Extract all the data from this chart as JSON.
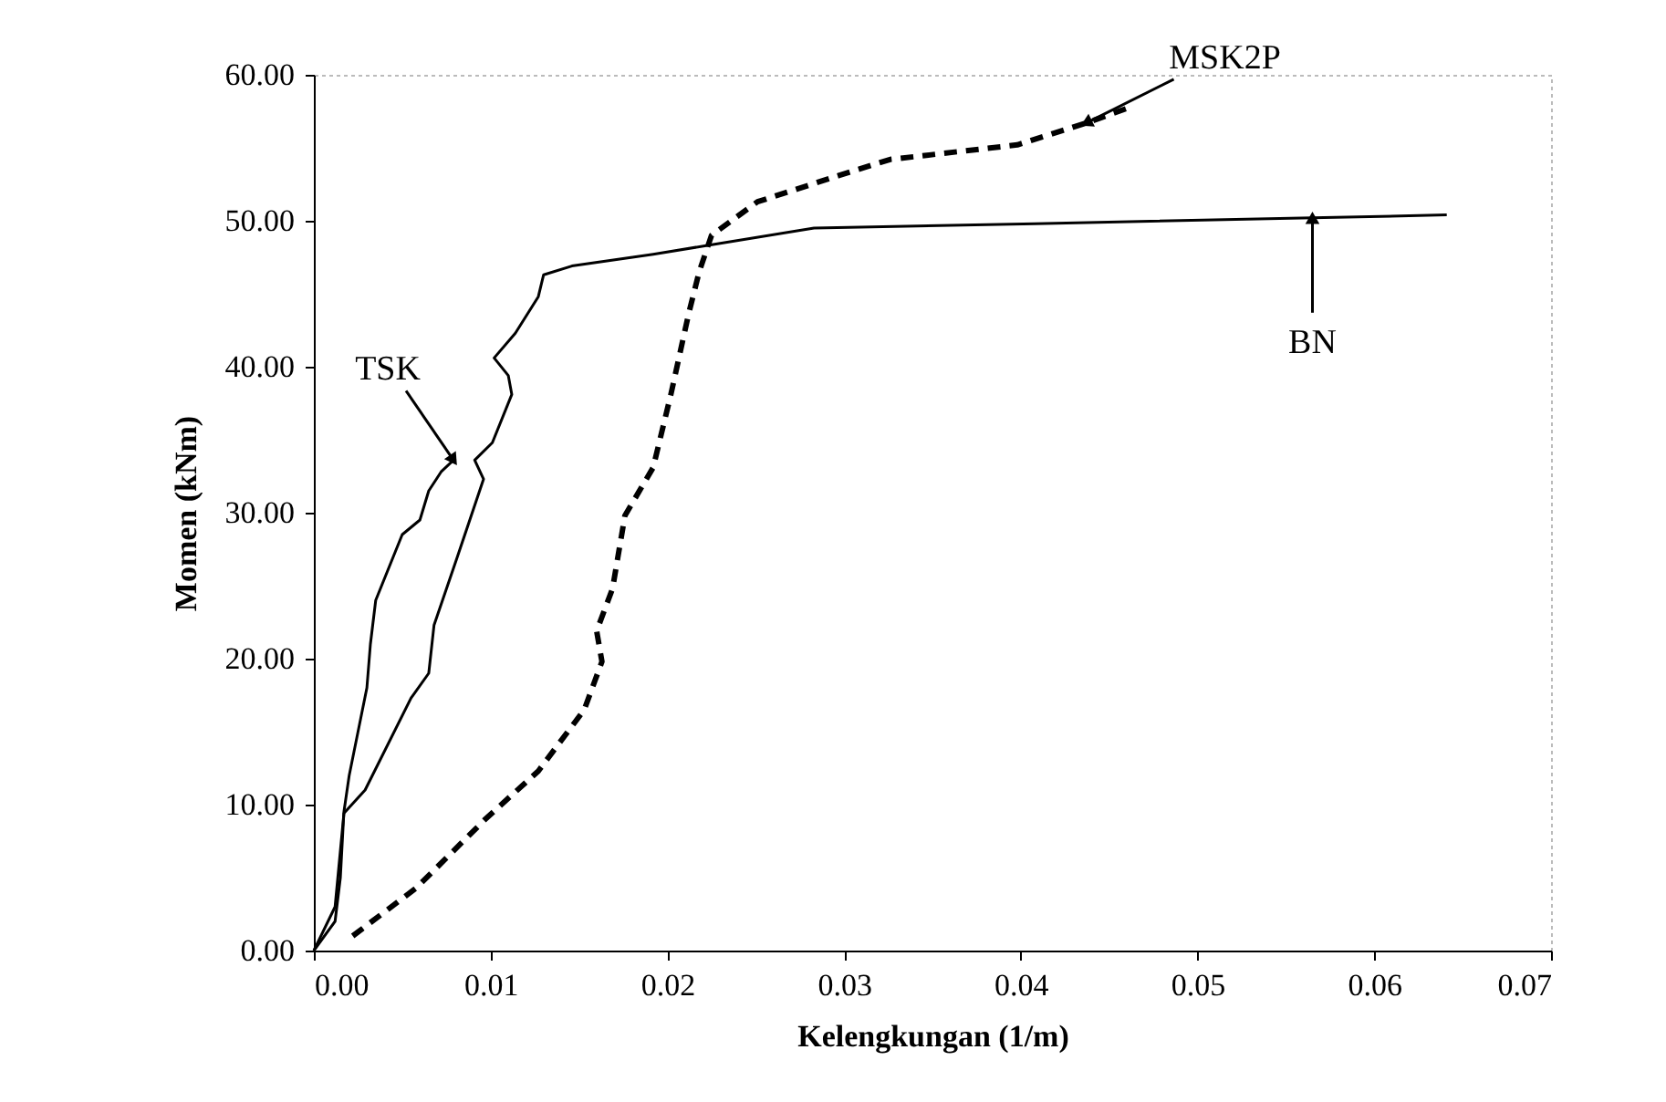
{
  "chart_data": {
    "type": "line",
    "xlabel": "Kelengkungan (1/m)",
    "ylabel": "Momen (kNm)",
    "xlim": [
      0,
      0.07
    ],
    "ylim": [
      0,
      60
    ],
    "xticks": [
      {
        "value": 0,
        "label": "0.00"
      },
      {
        "value": 0.01,
        "label": "0.01"
      },
      {
        "value": 0.02,
        "label": "0.02"
      },
      {
        "value": 0.03,
        "label": "0.03"
      },
      {
        "value": 0.04,
        "label": "0.04"
      },
      {
        "value": 0.05,
        "label": "0.05"
      },
      {
        "value": 0.06,
        "label": "0.06"
      },
      {
        "value": 0.07,
        "label": "0.07"
      }
    ],
    "yticks": [
      {
        "value": 0,
        "label": "0.00"
      },
      {
        "value": 10,
        "label": "10.00"
      },
      {
        "value": 20,
        "label": "20.00"
      },
      {
        "value": 30,
        "label": "30.00"
      },
      {
        "value": 40,
        "label": "40.00"
      },
      {
        "value": 50,
        "label": "50.00"
      },
      {
        "value": 60,
        "label": "60.00"
      }
    ],
    "grid": false,
    "legend": false,
    "marker": "none",
    "series": [
      {
        "name": "TSK",
        "color": "#000000",
        "line_style": "solid",
        "x": [
          0,
          0.0012,
          0.0015,
          0.0017,
          0.002,
          0.0025,
          0.003,
          0.0032,
          0.0035,
          0.004,
          0.0045,
          0.005,
          0.006,
          0.0065,
          0.0072,
          0.0079
        ],
        "values": [
          0,
          2,
          5,
          9.5,
          12,
          15,
          18,
          21,
          24,
          25.5,
          27,
          28.5,
          29.5,
          31.5,
          32.8,
          33.6
        ]
      },
      {
        "name": "BN",
        "color": "#000000",
        "line_style": "solid",
        "x": [
          0,
          0.0012,
          0.0017,
          0.0029,
          0.0055,
          0.0065,
          0.0068,
          0.0081,
          0.0096,
          0.0091,
          0.0101,
          0.0112,
          0.011,
          0.0102,
          0.0114,
          0.0127,
          0.013,
          0.0146,
          0.0192,
          0.0222,
          0.0283,
          0.0408,
          0.0565,
          0.0641
        ],
        "values": [
          0,
          3,
          9.4,
          11,
          17.3,
          19,
          22.3,
          26.9,
          32.3,
          33.6,
          34.8,
          38.1,
          39.4,
          40.6,
          42.3,
          44.8,
          46.3,
          46.9,
          47.7,
          48.3,
          49.5,
          49.8,
          50.2,
          50.4
        ]
      },
      {
        "name": "MSK2P",
        "color": "#000000",
        "line_style": "dashed",
        "x": [
          0.0022,
          0.0058,
          0.0097,
          0.0127,
          0.0153,
          0.0163,
          0.016,
          0.0169,
          0.0176,
          0.0192,
          0.0202,
          0.0212,
          0.0218,
          0.0225,
          0.0251,
          0.0297,
          0.0326,
          0.0398,
          0.0437,
          0.046
        ],
        "values": [
          1,
          4.3,
          9,
          12.3,
          16.5,
          19.8,
          21.9,
          24.8,
          29.8,
          33.1,
          38.1,
          43.6,
          46.5,
          49,
          51.3,
          53.1,
          54.2,
          55.2,
          56.7,
          57.7
        ]
      }
    ]
  }
}
